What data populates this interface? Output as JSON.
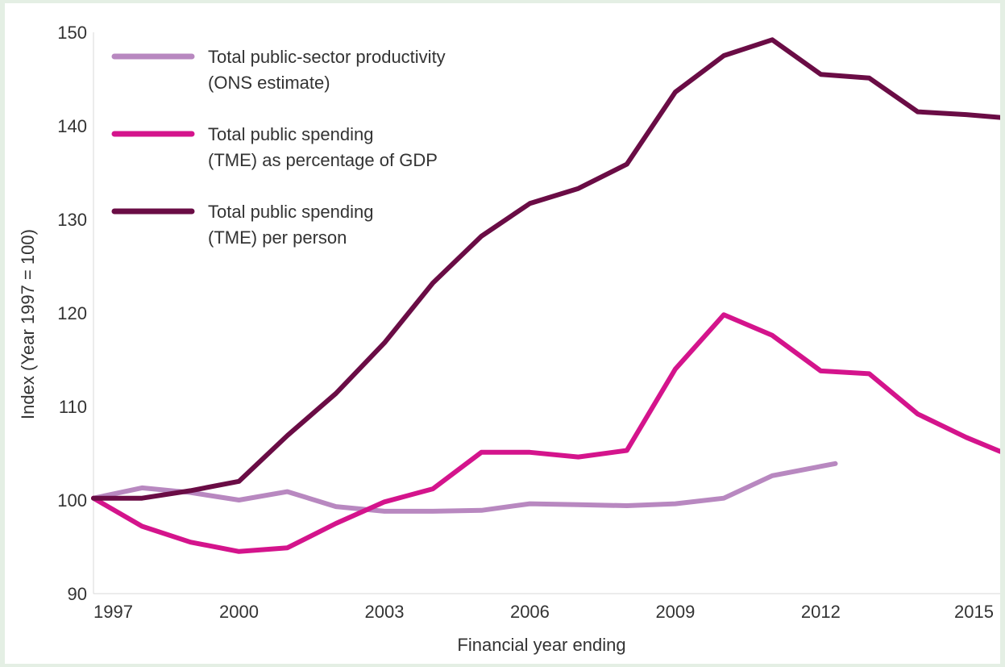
{
  "chart_data": {
    "type": "line",
    "title": "",
    "xlabel": "Financial year ending",
    "ylabel": "Index (Year 1997 = 100)",
    "xlim": [
      1997,
      2015.7
    ],
    "ylim": [
      90,
      150
    ],
    "x_ticks": [
      "1997",
      "2000",
      "2003",
      "2006",
      "2009",
      "2012",
      "2015"
    ],
    "y_ticks": [
      "90",
      "100",
      "110",
      "120",
      "130",
      "140",
      "150"
    ],
    "grid": false,
    "legend_position": "top-left",
    "series": [
      {
        "name_lines": [
          "Total public-sector productivity",
          "(ONS estimate)"
        ],
        "color": "#b888c0",
        "x": [
          1997,
          1998,
          1999,
          2000,
          2001,
          2002,
          2003,
          2004,
          2005,
          2006,
          2007,
          2008,
          2009,
          2010,
          2011,
          2012.3
        ],
        "y": [
          100.2,
          101.3,
          100.8,
          100.0,
          100.9,
          99.3,
          98.8,
          98.8,
          98.9,
          99.6,
          99.5,
          99.4,
          99.6,
          100.2,
          102.6,
          103.9
        ]
      },
      {
        "name_lines": [
          "Total public spending",
          "(TME) as percentage of GDP"
        ],
        "color": "#d4148c",
        "x": [
          1997,
          1998,
          1999,
          2000,
          2001,
          2002,
          2003,
          2004,
          2005,
          2006,
          2007,
          2008,
          2009,
          2010,
          2011,
          2012,
          2013,
          2014,
          2015,
          2015.7
        ],
        "y": [
          100.2,
          97.2,
          95.5,
          94.5,
          94.9,
          97.5,
          99.8,
          101.2,
          105.1,
          105.1,
          104.6,
          105.3,
          114.0,
          119.8,
          117.6,
          113.8,
          113.5,
          109.2,
          106.7,
          105.2
        ]
      },
      {
        "name_lines": [
          "Total public spending",
          "(TME) per person"
        ],
        "color": "#6a0c45",
        "x": [
          1997,
          1998,
          1999,
          2000,
          2001,
          2002,
          2003,
          2004,
          2005,
          2006,
          2007,
          2008,
          2009,
          2010,
          2011,
          2012,
          2013,
          2014,
          2015,
          2015.7
        ],
        "y": [
          100.2,
          100.2,
          101.0,
          102.0,
          106.9,
          111.4,
          116.8,
          123.2,
          128.2,
          131.7,
          133.3,
          135.9,
          143.6,
          147.5,
          149.2,
          145.5,
          145.1,
          141.5,
          141.2,
          140.9
        ]
      }
    ]
  }
}
